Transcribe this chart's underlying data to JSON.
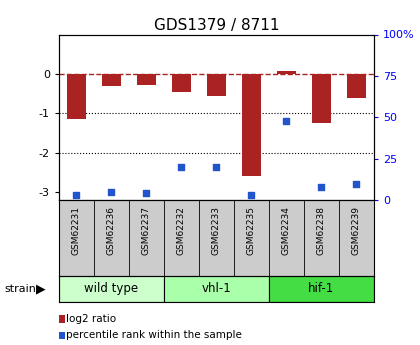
{
  "title": "GDS1379 / 8711",
  "samples": [
    "GSM62231",
    "GSM62236",
    "GSM62237",
    "GSM62232",
    "GSM62233",
    "GSM62235",
    "GSM62234",
    "GSM62238",
    "GSM62239"
  ],
  "log2_ratio": [
    -1.15,
    -0.3,
    -0.28,
    -0.45,
    -0.55,
    -2.6,
    0.08,
    -1.25,
    -0.6
  ],
  "percentile_rank": [
    3,
    5,
    4,
    20,
    20,
    3,
    48,
    8,
    10
  ],
  "groups": [
    {
      "label": "wild type",
      "start": 0,
      "end": 3,
      "color": "#ccffcc"
    },
    {
      "label": "vhl-1",
      "start": 3,
      "end": 6,
      "color": "#aaffaa"
    },
    {
      "label": "hif-1",
      "start": 6,
      "end": 9,
      "color": "#44dd44"
    }
  ],
  "ylim_left": [
    -3.2,
    1.0
  ],
  "ylim_right": [
    0,
    100
  ],
  "yticks_left": [
    -3,
    -2,
    -1,
    0
  ],
  "yticks_right_vals": [
    0,
    25,
    50,
    75,
    100
  ],
  "yticks_right_labels": [
    "0",
    "25",
    "50",
    "75",
    "100%"
  ],
  "bar_color": "#aa2222",
  "dot_color": "#2255cc",
  "ref_line_y": 0,
  "dotted_lines": [
    -1,
    -2
  ],
  "bar_width": 0.55,
  "label_row_color": "#cccccc",
  "group_border_color": "black"
}
